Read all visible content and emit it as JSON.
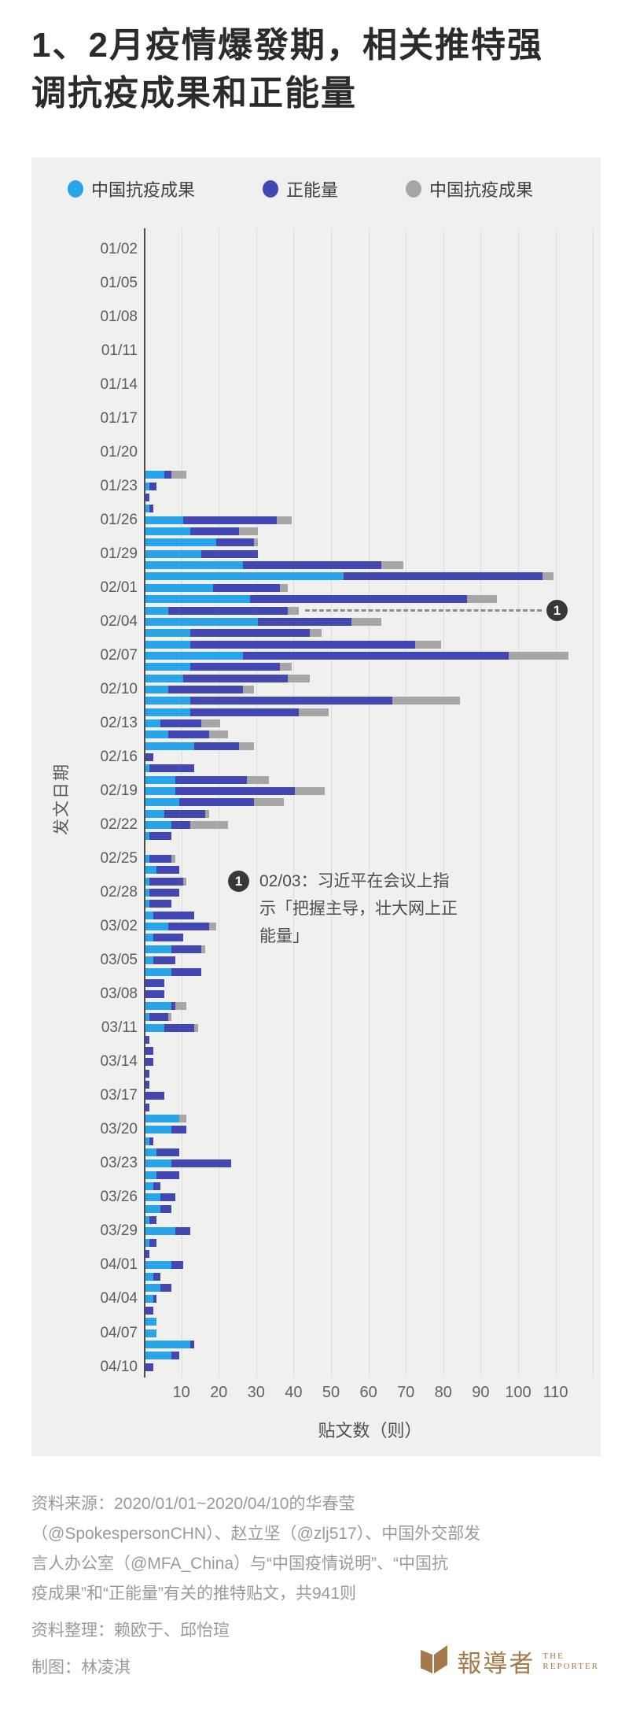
{
  "page": {
    "title": "1、2月疫情爆發期，相关推特强\n调抗疫成果和正能量"
  },
  "legend": {
    "items": [
      {
        "label": "中国抗疫成果",
        "color": "#29a4e9"
      },
      {
        "label": "正能量",
        "color": "#4247b2"
      },
      {
        "label": "中国抗疫成果",
        "color": "#a6a6a6"
      }
    ]
  },
  "chart_data": {
    "type": "bar",
    "orientation": "horizontal-stacked",
    "xlabel": "贴文数（则）",
    "ylabel": "发文日期",
    "xticks": [
      10,
      20,
      30,
      40,
      50,
      60,
      70,
      80,
      90,
      100,
      110
    ],
    "xlim": [
      0,
      121
    ],
    "grid": true,
    "legend_position": "top",
    "series": [
      {
        "name": "中国抗疫成果",
        "color": "#29a4e9"
      },
      {
        "name": "正能量",
        "color": "#4247b2"
      },
      {
        "name": "中国抗疫成果",
        "color": "#a6a6a6"
      }
    ],
    "annotation": {
      "badge": "1",
      "date": "02/03",
      "text": "02/03：习近平在会议上指\n示「把握主导，壮大网上正\n能量」"
    },
    "rows": [
      {
        "date": "01/01",
        "label": "",
        "v": [
          0,
          0,
          0
        ]
      },
      {
        "date": "01/02",
        "label": "01/02",
        "v": [
          0,
          0,
          0
        ]
      },
      {
        "date": "01/03",
        "label": "",
        "v": [
          0,
          0,
          0
        ]
      },
      {
        "date": "01/04",
        "label": "",
        "v": [
          0,
          0,
          0
        ]
      },
      {
        "date": "01/05",
        "label": "01/05",
        "v": [
          0,
          0,
          0
        ]
      },
      {
        "date": "01/06",
        "label": "",
        "v": [
          0,
          0,
          0
        ]
      },
      {
        "date": "01/07",
        "label": "",
        "v": [
          0,
          0,
          0
        ]
      },
      {
        "date": "01/08",
        "label": "01/08",
        "v": [
          0,
          0,
          0
        ]
      },
      {
        "date": "01/09",
        "label": "",
        "v": [
          0,
          0,
          0
        ]
      },
      {
        "date": "01/10",
        "label": "",
        "v": [
          0,
          0,
          0
        ]
      },
      {
        "date": "01/11",
        "label": "01/11",
        "v": [
          0,
          0,
          0
        ]
      },
      {
        "date": "01/12",
        "label": "",
        "v": [
          0,
          0,
          0
        ]
      },
      {
        "date": "01/13",
        "label": "",
        "v": [
          0,
          0,
          0
        ]
      },
      {
        "date": "01/14",
        "label": "01/14",
        "v": [
          0,
          0,
          0
        ]
      },
      {
        "date": "01/15",
        "label": "",
        "v": [
          0,
          0,
          0
        ]
      },
      {
        "date": "01/16",
        "label": "",
        "v": [
          0,
          0,
          0
        ]
      },
      {
        "date": "01/17",
        "label": "01/17",
        "v": [
          0,
          0,
          0
        ]
      },
      {
        "date": "01/18",
        "label": "",
        "v": [
          0,
          0,
          0
        ]
      },
      {
        "date": "01/19",
        "label": "",
        "v": [
          0,
          0,
          0
        ]
      },
      {
        "date": "01/20",
        "label": "01/20",
        "v": [
          0,
          0,
          0
        ]
      },
      {
        "date": "01/21",
        "label": "",
        "v": [
          0,
          0,
          0
        ]
      },
      {
        "date": "01/22",
        "label": "",
        "v": [
          5,
          2,
          4
        ]
      },
      {
        "date": "01/23",
        "label": "01/23",
        "v": [
          1,
          2,
          0
        ]
      },
      {
        "date": "01/24",
        "label": "",
        "v": [
          0,
          1,
          0
        ]
      },
      {
        "date": "01/25",
        "label": "",
        "v": [
          1,
          1,
          0
        ]
      },
      {
        "date": "01/26",
        "label": "01/26",
        "v": [
          10,
          25,
          4
        ]
      },
      {
        "date": "01/27",
        "label": "",
        "v": [
          12,
          13,
          5
        ]
      },
      {
        "date": "01/28",
        "label": "",
        "v": [
          19,
          10,
          1
        ]
      },
      {
        "date": "01/29",
        "label": "01/29",
        "v": [
          15,
          15,
          0
        ]
      },
      {
        "date": "01/30",
        "label": "",
        "v": [
          26,
          37,
          6
        ]
      },
      {
        "date": "01/31",
        "label": "",
        "v": [
          53,
          53,
          3
        ]
      },
      {
        "date": "02/01",
        "label": "02/01",
        "v": [
          18,
          18,
          2
        ]
      },
      {
        "date": "02/02",
        "label": "",
        "v": [
          28,
          58,
          8
        ]
      },
      {
        "date": "02/03",
        "label": "",
        "v": [
          6,
          32,
          3
        ]
      },
      {
        "date": "02/04",
        "label": "02/04",
        "v": [
          30,
          25,
          8
        ]
      },
      {
        "date": "02/05",
        "label": "",
        "v": [
          12,
          32,
          3
        ]
      },
      {
        "date": "02/06",
        "label": "",
        "v": [
          12,
          60,
          7
        ]
      },
      {
        "date": "02/07",
        "label": "02/07",
        "v": [
          26,
          71,
          16
        ]
      },
      {
        "date": "02/08",
        "label": "",
        "v": [
          12,
          24,
          3
        ]
      },
      {
        "date": "02/09",
        "label": "",
        "v": [
          10,
          28,
          6
        ]
      },
      {
        "date": "02/10",
        "label": "02/10",
        "v": [
          6,
          20,
          3
        ]
      },
      {
        "date": "02/11",
        "label": "",
        "v": [
          12,
          54,
          18
        ]
      },
      {
        "date": "02/12",
        "label": "",
        "v": [
          12,
          29,
          8
        ]
      },
      {
        "date": "02/13",
        "label": "02/13",
        "v": [
          4,
          11,
          5
        ]
      },
      {
        "date": "02/14",
        "label": "",
        "v": [
          6,
          11,
          5
        ]
      },
      {
        "date": "02/15",
        "label": "",
        "v": [
          13,
          12,
          4
        ]
      },
      {
        "date": "02/16",
        "label": "02/16",
        "v": [
          0,
          2,
          0
        ]
      },
      {
        "date": "02/17",
        "label": "",
        "v": [
          1,
          12,
          0
        ]
      },
      {
        "date": "02/18",
        "label": "",
        "v": [
          8,
          19,
          6
        ]
      },
      {
        "date": "02/19",
        "label": "02/19",
        "v": [
          8,
          32,
          8
        ]
      },
      {
        "date": "02/20",
        "label": "",
        "v": [
          9,
          20,
          8
        ]
      },
      {
        "date": "02/21",
        "label": "",
        "v": [
          5,
          11,
          1
        ]
      },
      {
        "date": "02/22",
        "label": "02/22",
        "v": [
          7,
          5,
          10
        ]
      },
      {
        "date": "02/23",
        "label": "",
        "v": [
          1,
          6,
          0
        ]
      },
      {
        "date": "02/24",
        "label": "",
        "v": [
          0,
          0,
          0
        ]
      },
      {
        "date": "02/25",
        "label": "02/25",
        "v": [
          1,
          6,
          1
        ]
      },
      {
        "date": "02/26",
        "label": "",
        "v": [
          3,
          6,
          0
        ]
      },
      {
        "date": "02/27",
        "label": "",
        "v": [
          1,
          9,
          1
        ]
      },
      {
        "date": "02/28",
        "label": "02/28",
        "v": [
          1,
          8,
          0
        ]
      },
      {
        "date": "02/29",
        "label": "",
        "v": [
          1,
          6,
          0
        ]
      },
      {
        "date": "03/01",
        "label": "",
        "v": [
          2,
          11,
          0
        ]
      },
      {
        "date": "03/02",
        "label": "03/02",
        "v": [
          6,
          11,
          2
        ]
      },
      {
        "date": "03/03",
        "label": "",
        "v": [
          2,
          8,
          0
        ]
      },
      {
        "date": "03/04",
        "label": "",
        "v": [
          7,
          8,
          1
        ]
      },
      {
        "date": "03/05",
        "label": "03/05",
        "v": [
          2,
          6,
          0
        ]
      },
      {
        "date": "03/06",
        "label": "",
        "v": [
          7,
          8,
          0
        ]
      },
      {
        "date": "03/07",
        "label": "",
        "v": [
          0,
          5,
          0
        ]
      },
      {
        "date": "03/08",
        "label": "03/08",
        "v": [
          0,
          5,
          0
        ]
      },
      {
        "date": "03/09",
        "label": "",
        "v": [
          7,
          1,
          3
        ]
      },
      {
        "date": "03/10",
        "label": "",
        "v": [
          1,
          5,
          1
        ]
      },
      {
        "date": "03/11",
        "label": "03/11",
        "v": [
          5,
          8,
          1
        ]
      },
      {
        "date": "03/12",
        "label": "",
        "v": [
          0,
          1,
          0
        ]
      },
      {
        "date": "03/13",
        "label": "",
        "v": [
          0,
          2,
          0
        ]
      },
      {
        "date": "03/14",
        "label": "03/14",
        "v": [
          0,
          2,
          0
        ]
      },
      {
        "date": "03/15",
        "label": "",
        "v": [
          0,
          1,
          0
        ]
      },
      {
        "date": "03/16",
        "label": "",
        "v": [
          0,
          1,
          0
        ]
      },
      {
        "date": "03/17",
        "label": "03/17",
        "v": [
          0,
          5,
          0
        ]
      },
      {
        "date": "03/18",
        "label": "",
        "v": [
          0,
          1,
          0
        ]
      },
      {
        "date": "03/19",
        "label": "",
        "v": [
          9,
          0,
          2
        ]
      },
      {
        "date": "03/20",
        "label": "03/20",
        "v": [
          7,
          4,
          0
        ]
      },
      {
        "date": "03/21",
        "label": "",
        "v": [
          1,
          1,
          0
        ]
      },
      {
        "date": "03/22",
        "label": "",
        "v": [
          3,
          6,
          0
        ]
      },
      {
        "date": "03/23",
        "label": "03/23",
        "v": [
          7,
          16,
          0
        ]
      },
      {
        "date": "03/24",
        "label": "",
        "v": [
          3,
          6,
          0
        ]
      },
      {
        "date": "03/25",
        "label": "",
        "v": [
          2,
          2,
          0
        ]
      },
      {
        "date": "03/26",
        "label": "03/26",
        "v": [
          4,
          4,
          0
        ]
      },
      {
        "date": "03/27",
        "label": "",
        "v": [
          4,
          3,
          0
        ]
      },
      {
        "date": "03/28",
        "label": "",
        "v": [
          1,
          2,
          0
        ]
      },
      {
        "date": "03/29",
        "label": "03/29",
        "v": [
          8,
          4,
          0
        ]
      },
      {
        "date": "03/30",
        "label": "",
        "v": [
          1,
          2,
          0
        ]
      },
      {
        "date": "03/31",
        "label": "",
        "v": [
          0,
          1,
          0
        ]
      },
      {
        "date": "04/01",
        "label": "04/01",
        "v": [
          7,
          3,
          0
        ]
      },
      {
        "date": "04/02",
        "label": "",
        "v": [
          2,
          2,
          0
        ]
      },
      {
        "date": "04/03",
        "label": "",
        "v": [
          4,
          3,
          0
        ]
      },
      {
        "date": "04/04",
        "label": "04/04",
        "v": [
          2,
          1,
          0
        ]
      },
      {
        "date": "04/05",
        "label": "",
        "v": [
          0,
          2,
          0
        ]
      },
      {
        "date": "04/06",
        "label": "",
        "v": [
          3,
          0,
          0
        ]
      },
      {
        "date": "04/07",
        "label": "04/07",
        "v": [
          3,
          0,
          0
        ]
      },
      {
        "date": "04/08",
        "label": "",
        "v": [
          12,
          1,
          0
        ]
      },
      {
        "date": "04/09",
        "label": "",
        "v": [
          7,
          2,
          0
        ]
      },
      {
        "date": "04/10",
        "label": "04/10",
        "v": [
          0,
          2,
          0
        ]
      }
    ]
  },
  "footer": {
    "lines": [
      "资料来源：2020/01/01~2020/04/10的华春莹",
      "（@SpokespersonCHN）、赵立坚（@zlj517）、中国外交部发",
      "言人办公室（@MFA_China）与“中国疫情说明”、“中国抗",
      "疫成果”和“正能量”有关的推特贴文，共941则",
      "资料整理：赖欧于、邱怡瑄",
      "制图：林凌淇"
    ]
  },
  "logo": {
    "name": "報導者",
    "sub_line1": "THE",
    "sub_line2": "REPORTER",
    "color": "#a5794a"
  }
}
